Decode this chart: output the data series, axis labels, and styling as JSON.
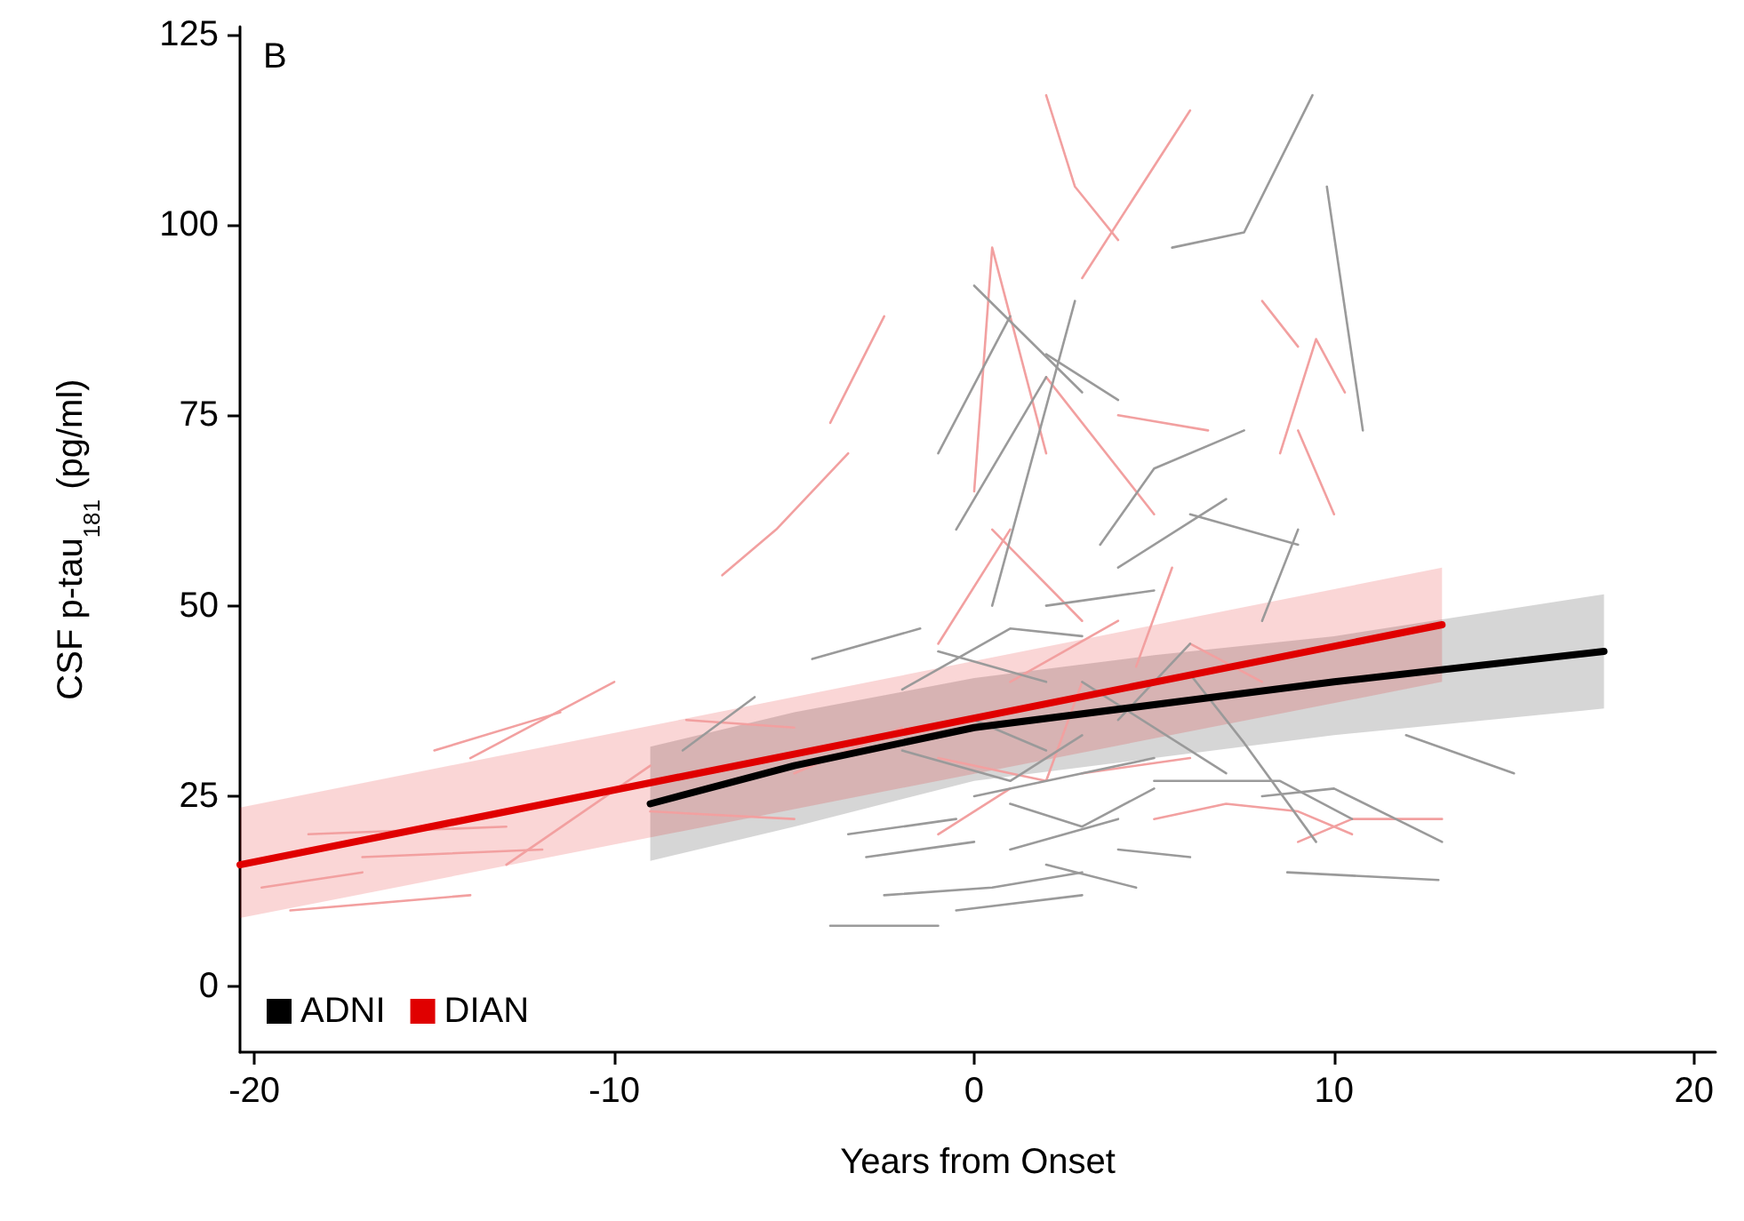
{
  "chart_data": {
    "type": "line",
    "xlabel": "Years from Onset",
    "ylabel": "CSF p-tau$_{181}$ (pg/ml)",
    "annotations": [
      "B"
    ],
    "xlim": [
      -20.4,
      20.6
    ],
    "ylim": [
      -8.6,
      126
    ],
    "xticks": [
      -20,
      -10,
      0,
      10,
      20
    ],
    "yticks": [
      0,
      25,
      50,
      75,
      100,
      125
    ],
    "grid": false,
    "legend": "bottom left",
    "marker": "none",
    "line_style": "solid",
    "series": [
      {
        "color": "#f2a0a0",
        "x": [
          -19.8,
          -17
        ],
        "values": [
          13,
          15
        ]
      },
      {
        "color": "#f2a0a0",
        "x": [
          -19,
          -14
        ],
        "values": [
          10,
          12
        ]
      },
      {
        "color": "#f2a0a0",
        "x": [
          -18.5,
          -13
        ],
        "values": [
          20,
          21
        ]
      },
      {
        "color": "#f2a0a0",
        "x": [
          -17,
          -12
        ],
        "values": [
          17,
          18
        ]
      },
      {
        "color": "#f2a0a0",
        "x": [
          -15,
          -11.5
        ],
        "values": [
          31,
          36
        ]
      },
      {
        "color": "#f2a0a0",
        "x": [
          -14,
          -10
        ],
        "values": [
          30,
          40
        ]
      },
      {
        "color": "#f2a0a0",
        "x": [
          -13,
          -9
        ],
        "values": [
          16,
          29
        ]
      },
      {
        "color": "#f2a0a0",
        "x": [
          -7,
          -5.5,
          -3.5
        ],
        "values": [
          54,
          60,
          70
        ]
      },
      {
        "color": "#f2a0a0",
        "x": [
          -4,
          -2.5
        ],
        "values": [
          74,
          88
        ]
      },
      {
        "color": "#f2a0a0",
        "x": [
          -1,
          1
        ],
        "values": [
          45,
          60
        ]
      },
      {
        "color": "#f2a0a0",
        "x": [
          0,
          0.5,
          2
        ],
        "values": [
          65,
          97,
          70
        ]
      },
      {
        "color": "#f2a0a0",
        "x": [
          2,
          2.8,
          4
        ],
        "values": [
          117,
          105,
          98
        ]
      },
      {
        "color": "#f2a0a0",
        "x": [
          3,
          6
        ],
        "values": [
          93,
          115
        ]
      },
      {
        "color": "#f2a0a0",
        "x": [
          4.5,
          5.5
        ],
        "values": [
          42,
          55
        ]
      },
      {
        "color": "#f2a0a0",
        "x": [
          8.5,
          9.5,
          10.3
        ],
        "values": [
          70,
          85,
          78
        ]
      },
      {
        "color": "#f2a0a0",
        "x": [
          9,
          10
        ],
        "values": [
          73,
          62
        ]
      },
      {
        "color": "#f2a0a0",
        "x": [
          9,
          10.5,
          13
        ],
        "values": [
          19,
          22,
          22
        ]
      },
      {
        "color": "#f2a0a0",
        "x": [
          5,
          7,
          9,
          10.5
        ],
        "values": [
          22,
          24,
          23,
          20
        ]
      },
      {
        "color": "#f2a0a0",
        "x": [
          -5,
          -2
        ],
        "values": [
          28,
          34
        ]
      },
      {
        "color": "#f2a0a0",
        "x": [
          -9,
          -5
        ],
        "values": [
          23,
          22
        ]
      },
      {
        "color": "#f2a0a0",
        "x": [
          1,
          4
        ],
        "values": [
          40,
          48
        ]
      },
      {
        "color": "#f2a0a0",
        "x": [
          3,
          6
        ],
        "values": [
          28,
          30
        ]
      },
      {
        "color": "#f2a0a0",
        "x": [
          -1,
          2,
          3
        ],
        "values": [
          30,
          27,
          40
        ]
      },
      {
        "color": "#f2a0a0",
        "x": [
          0.5,
          3
        ],
        "values": [
          60,
          48
        ]
      },
      {
        "color": "#f2a0a0",
        "x": [
          8,
          9
        ],
        "values": [
          90,
          84
        ]
      },
      {
        "color": "#f2a0a0",
        "x": [
          2,
          5
        ],
        "values": [
          80,
          62
        ]
      },
      {
        "color": "#f2a0a0",
        "x": [
          -8,
          -5
        ],
        "values": [
          35,
          34
        ]
      },
      {
        "color": "#f2a0a0",
        "x": [
          6,
          8
        ],
        "values": [
          45,
          40
        ]
      },
      {
        "color": "#f2a0a0",
        "x": [
          -1,
          1
        ],
        "values": [
          20,
          26
        ]
      },
      {
        "color": "#f2a0a0",
        "x": [
          4,
          6.5
        ],
        "values": [
          75,
          73
        ]
      },
      {
        "color": "#9a9a9a",
        "x": [
          5.5,
          7.5,
          9.4
        ],
        "values": [
          97,
          99,
          117
        ]
      },
      {
        "color": "#9a9a9a",
        "x": [
          9.8,
          10.8
        ],
        "values": [
          105,
          73
        ]
      },
      {
        "color": "#9a9a9a",
        "x": [
          -1,
          1
        ],
        "values": [
          70,
          88
        ]
      },
      {
        "color": "#9a9a9a",
        "x": [
          0,
          3
        ],
        "values": [
          92,
          78
        ]
      },
      {
        "color": "#9a9a9a",
        "x": [
          0.5,
          2.8
        ],
        "values": [
          50,
          90
        ]
      },
      {
        "color": "#9a9a9a",
        "x": [
          -0.5,
          2
        ],
        "values": [
          60,
          80
        ]
      },
      {
        "color": "#9a9a9a",
        "x": [
          2,
          4
        ],
        "values": [
          83,
          77
        ]
      },
      {
        "color": "#9a9a9a",
        "x": [
          3.5,
          5,
          7.5
        ],
        "values": [
          58,
          68,
          73
        ]
      },
      {
        "color": "#9a9a9a",
        "x": [
          4,
          7
        ],
        "values": [
          55,
          64
        ]
      },
      {
        "color": "#9a9a9a",
        "x": [
          6,
          9
        ],
        "values": [
          62,
          58
        ]
      },
      {
        "color": "#9a9a9a",
        "x": [
          -2,
          1,
          3
        ],
        "values": [
          39,
          47,
          46
        ]
      },
      {
        "color": "#9a9a9a",
        "x": [
          8,
          9
        ],
        "values": [
          48,
          60
        ]
      },
      {
        "color": "#9a9a9a",
        "x": [
          -8.1,
          -6.1
        ],
        "values": [
          31,
          38
        ]
      },
      {
        "color": "#9a9a9a",
        "x": [
          -4.5,
          -1.5
        ],
        "values": [
          43,
          47
        ]
      },
      {
        "color": "#9a9a9a",
        "x": [
          -3.5,
          -0.5
        ],
        "values": [
          20,
          22
        ]
      },
      {
        "color": "#9a9a9a",
        "x": [
          -2.5,
          0.5,
          3
        ],
        "values": [
          12,
          13,
          15
        ]
      },
      {
        "color": "#9a9a9a",
        "x": [
          -4,
          -1
        ],
        "values": [
          8,
          8
        ]
      },
      {
        "color": "#9a9a9a",
        "x": [
          0,
          3,
          5
        ],
        "values": [
          25,
          28,
          30
        ]
      },
      {
        "color": "#9a9a9a",
        "x": [
          1,
          4
        ],
        "values": [
          18,
          22
        ]
      },
      {
        "color": "#9a9a9a",
        "x": [
          -2,
          1,
          3
        ],
        "values": [
          31,
          27,
          33
        ]
      },
      {
        "color": "#9a9a9a",
        "x": [
          2,
          4.5
        ],
        "values": [
          16,
          13
        ]
      },
      {
        "color": "#9a9a9a",
        "x": [
          3,
          7
        ],
        "values": [
          40,
          28
        ]
      },
      {
        "color": "#9a9a9a",
        "x": [
          5,
          8.5,
          10.5
        ],
        "values": [
          27,
          27,
          22
        ]
      },
      {
        "color": "#9a9a9a",
        "x": [
          8.7,
          12.9
        ],
        "values": [
          15,
          14
        ]
      },
      {
        "color": "#9a9a9a",
        "x": [
          6,
          7.5,
          9.5
        ],
        "values": [
          41,
          32,
          19
        ]
      },
      {
        "color": "#9a9a9a",
        "x": [
          12,
          15
        ],
        "values": [
          33,
          28
        ]
      },
      {
        "color": "#9a9a9a",
        "x": [
          0,
          2
        ],
        "values": [
          35,
          31
        ]
      },
      {
        "color": "#9a9a9a",
        "x": [
          -1,
          2
        ],
        "values": [
          44,
          40
        ]
      },
      {
        "color": "#9a9a9a",
        "x": [
          4,
          6
        ],
        "values": [
          35,
          45
        ]
      },
      {
        "color": "#9a9a9a",
        "x": [
          1,
          3,
          5
        ],
        "values": [
          24,
          21,
          26
        ]
      },
      {
        "color": "#9a9a9a",
        "x": [
          -0.5,
          3
        ],
        "values": [
          10,
          12
        ]
      },
      {
        "color": "#9a9a9a",
        "x": [
          2,
          5
        ],
        "values": [
          50,
          52
        ]
      },
      {
        "color": "#9a9a9a",
        "x": [
          8,
          10,
          13
        ],
        "values": [
          25,
          26,
          19
        ]
      },
      {
        "color": "#9a9a9a",
        "x": [
          -3,
          0
        ],
        "values": [
          17,
          19
        ]
      },
      {
        "color": "#9a9a9a",
        "x": [
          4,
          6
        ],
        "values": [
          18,
          17
        ]
      },
      {
        "name": "ADNI",
        "color": "#000000",
        "x": [
          -9,
          -5,
          0,
          5,
          10,
          17.5
        ],
        "values": [
          24,
          29,
          34,
          37,
          40,
          44
        ],
        "lower": [
          16.5,
          21,
          27,
          30,
          33,
          36.5
        ],
        "upper": [
          31.5,
          36,
          40.5,
          43.5,
          46,
          51.5
        ]
      },
      {
        "name": "DIAN",
        "color": "#e00000",
        "x": [
          -20.4,
          13
        ],
        "values": [
          16,
          47.5
        ],
        "lower": [
          9,
          40
        ],
        "upper": [
          23.5,
          55
        ]
      }
    ]
  }
}
